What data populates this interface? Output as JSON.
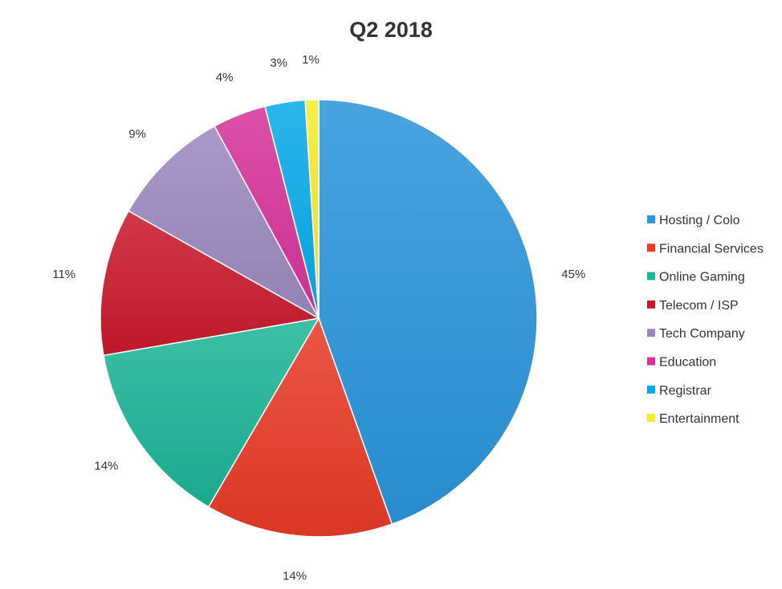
{
  "chart_data": {
    "type": "pie",
    "title": "Q2 2018",
    "legend_position": "right",
    "slices": [
      {
        "label": "Hosting / Colo",
        "value": 45,
        "value_label": "45%",
        "color": "#2a95da"
      },
      {
        "label": "Financial Services",
        "value": 14,
        "value_label": "14%",
        "color": "#e83a27"
      },
      {
        "label": "Online Gaming",
        "value": 14,
        "value_label": "14%",
        "color": "#1db496"
      },
      {
        "label": "Telecom / ISP",
        "value": 11,
        "value_label": "11%",
        "color": "#c9192d"
      },
      {
        "label": "Tech Company",
        "value": 9,
        "value_label": "9%",
        "color": "#9c88c0"
      },
      {
        "label": "Education",
        "value": 4,
        "value_label": "4%",
        "color": "#d6339a"
      },
      {
        "label": "Registrar",
        "value": 3,
        "value_label": "3%",
        "color": "#07aae8"
      },
      {
        "label": "Entertainment",
        "value": 1,
        "value_label": "1%",
        "color": "#f5eb2e"
      }
    ]
  }
}
